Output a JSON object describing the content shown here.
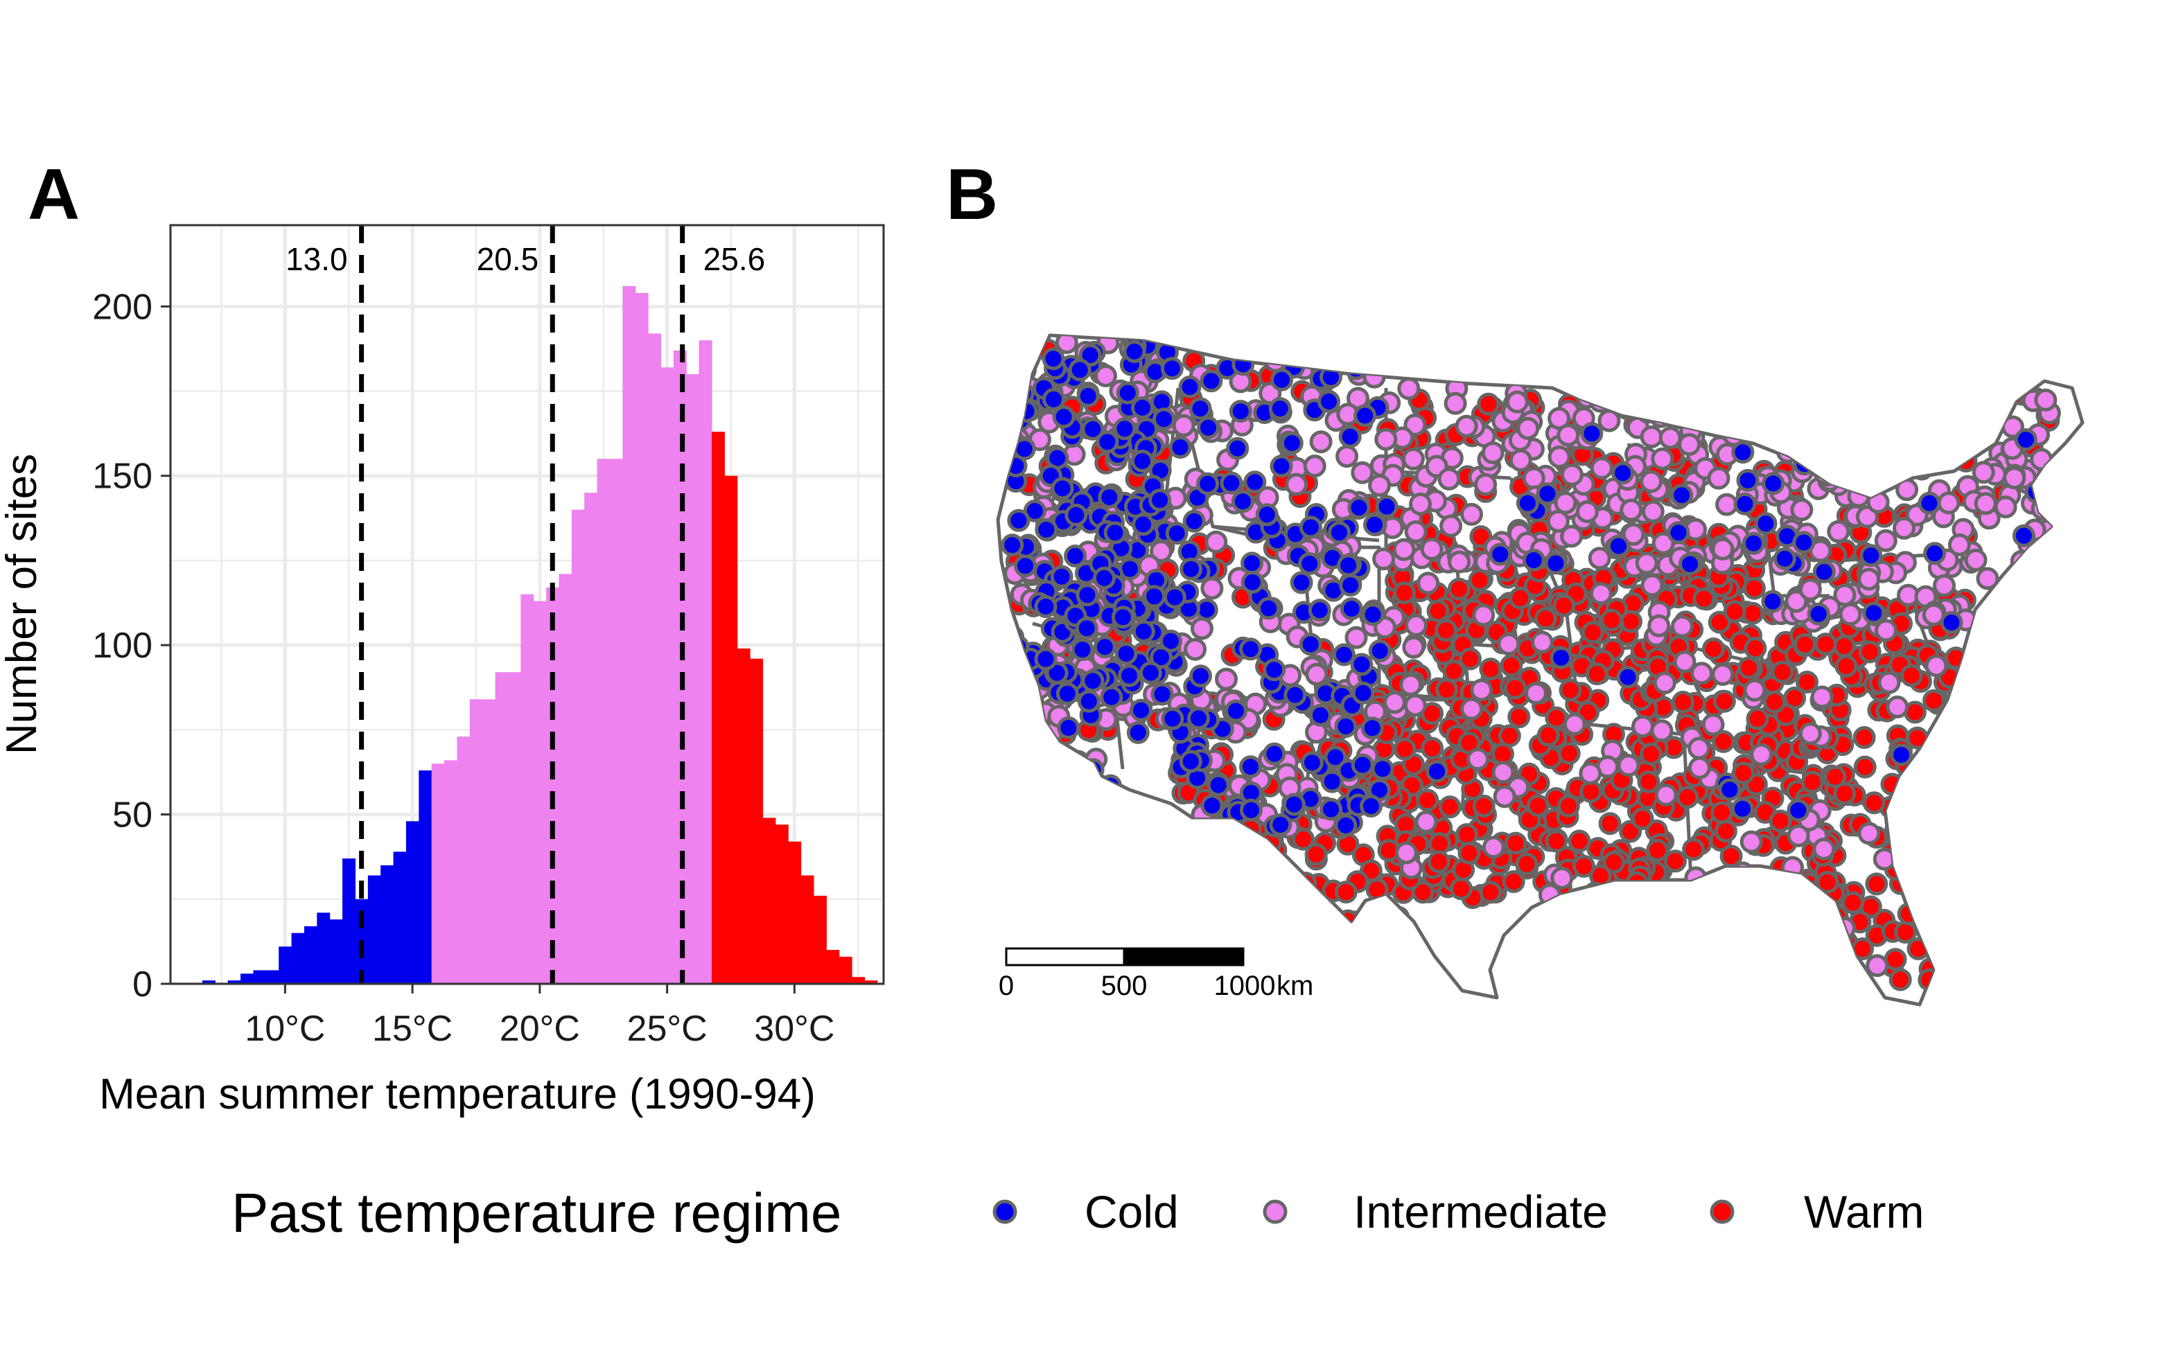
{
  "colors": {
    "cold": "#0000ee",
    "intermediate": "#ee82ee",
    "warm": "#ff0000",
    "outline": "#666666",
    "grid": "#ebebeb",
    "threshold_line": "#000000"
  },
  "chart_data": [
    {
      "panel": "A",
      "type": "bar",
      "subtype": "histogram",
      "xlabel": "Mean summer temperature (1990-94)",
      "ylabel": "Number of sites",
      "xlim": [
        5.5,
        33.5
      ],
      "ylim": [
        0,
        224
      ],
      "bin_width": 0.5,
      "x_ticks": [
        {
          "value": 10,
          "label": "10°C"
        },
        {
          "value": 15,
          "label": "15°C"
        },
        {
          "value": 20,
          "label": "20°C"
        },
        {
          "value": 25,
          "label": "25°C"
        },
        {
          "value": 30,
          "label": "30°C"
        }
      ],
      "y_ticks": [
        {
          "value": 0,
          "label": "0"
        },
        {
          "value": 50,
          "label": "50"
        },
        {
          "value": 100,
          "label": "100"
        },
        {
          "value": 150,
          "label": "150"
        },
        {
          "value": 200,
          "label": "200"
        }
      ],
      "grid": true,
      "thresholds": [
        {
          "value": 13.0,
          "label": "13.0"
        },
        {
          "value": 20.5,
          "label": "20.5"
        },
        {
          "value": 25.6,
          "label": "25.6"
        }
      ],
      "series": [
        {
          "regime": "cold",
          "bins": [
            {
              "x": 7.0,
              "y": 1
            },
            {
              "x": 7.5,
              "y": 0
            },
            {
              "x": 8.0,
              "y": 1
            },
            {
              "x": 8.5,
              "y": 3
            },
            {
              "x": 9.0,
              "y": 4
            },
            {
              "x": 9.5,
              "y": 4
            },
            {
              "x": 10.0,
              "y": 11
            },
            {
              "x": 10.5,
              "y": 15
            },
            {
              "x": 11.0,
              "y": 17
            },
            {
              "x": 11.5,
              "y": 21
            },
            {
              "x": 12.0,
              "y": 19
            },
            {
              "x": 12.5,
              "y": 37
            },
            {
              "x": 13.0,
              "y": 25
            },
            {
              "x": 13.5,
              "y": 32
            },
            {
              "x": 14.0,
              "y": 35
            },
            {
              "x": 14.5,
              "y": 39
            },
            {
              "x": 15.0,
              "y": 48
            },
            {
              "x": 15.5,
              "y": 63
            }
          ]
        },
        {
          "regime": "intermediate",
          "bins": [
            {
              "x": 16.0,
              "y": 65
            },
            {
              "x": 16.5,
              "y": 66
            },
            {
              "x": 17.0,
              "y": 73
            },
            {
              "x": 17.5,
              "y": 84
            },
            {
              "x": 18.0,
              "y": 84
            },
            {
              "x": 18.5,
              "y": 92
            },
            {
              "x": 19.0,
              "y": 92
            },
            {
              "x": 19.5,
              "y": 115
            },
            {
              "x": 20.0,
              "y": 113
            },
            {
              "x": 20.5,
              "y": 117
            },
            {
              "x": 21.0,
              "y": 121
            },
            {
              "x": 21.5,
              "y": 140
            },
            {
              "x": 22.0,
              "y": 145
            },
            {
              "x": 22.5,
              "y": 155
            },
            {
              "x": 23.0,
              "y": 155
            },
            {
              "x": 23.5,
              "y": 206
            },
            {
              "x": 24.0,
              "y": 204
            },
            {
              "x": 24.5,
              "y": 192
            },
            {
              "x": 25.0,
              "y": 182
            },
            {
              "x": 25.5,
              "y": 187
            },
            {
              "x": 26.0,
              "y": 180
            },
            {
              "x": 26.5,
              "y": 190
            }
          ]
        },
        {
          "regime": "warm",
          "bins": [
            {
              "x": 27.0,
              "y": 163
            },
            {
              "x": 27.5,
              "y": 150
            },
            {
              "x": 28.0,
              "y": 99
            },
            {
              "x": 28.5,
              "y": 96
            },
            {
              "x": 29.0,
              "y": 49
            },
            {
              "x": 29.5,
              "y": 47
            },
            {
              "x": 30.0,
              "y": 42
            },
            {
              "x": 30.5,
              "y": 32
            },
            {
              "x": 31.0,
              "y": 26
            },
            {
              "x": 31.5,
              "y": 10
            },
            {
              "x": 32.0,
              "y": 8
            },
            {
              "x": 32.5,
              "y": 2
            },
            {
              "x": 33.0,
              "y": 1
            }
          ]
        }
      ]
    },
    {
      "panel": "B",
      "type": "scatter",
      "subtype": "map",
      "map_extent": "contiguous United States",
      "scale_bar": {
        "ticks": [
          "0",
          "500",
          "1000"
        ],
        "unit": "km"
      },
      "series": [
        {
          "regime": "cold",
          "distribution": "west and mountain west, northern border, parts of New England"
        },
        {
          "regime": "intermediate",
          "distribution": "north-central and northeastern states, scattered west"
        },
        {
          "regime": "warm",
          "distribution": "south, southeast, great plains and midwest"
        }
      ]
    }
  ],
  "panels": {
    "a_letter": "A",
    "b_letter": "B"
  },
  "legend": {
    "title": "Past temperature regime",
    "items": [
      {
        "key": "cold",
        "label": "Cold"
      },
      {
        "key": "intermediate",
        "label": "Intermediate"
      },
      {
        "key": "warm",
        "label": "Warm"
      }
    ]
  }
}
